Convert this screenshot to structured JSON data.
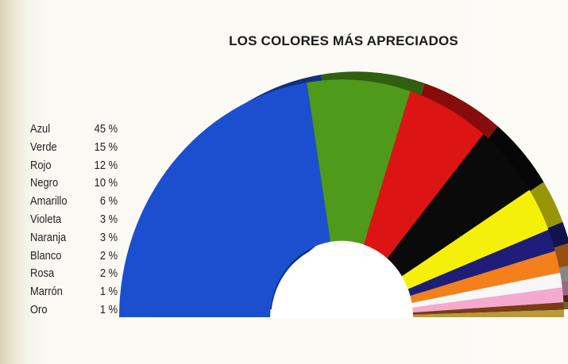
{
  "chart_data": {
    "type": "pie",
    "title": "LOS COLORES MÁS APRECIADOS",
    "categories": [
      "Azul",
      "Verde",
      "Rojo",
      "Negro",
      "Amarillo",
      "Violeta",
      "Naranja",
      "Blanco",
      "Rosa",
      "Marrón",
      "Oro"
    ],
    "values": [
      45,
      15,
      12,
      10,
      6,
      3,
      3,
      2,
      2,
      1,
      1
    ],
    "value_labels": [
      "45 %",
      "15 %",
      "12 %",
      "10 %",
      "6 %",
      "3 %",
      "3 %",
      "2 %",
      "2 %",
      "1 %",
      "1 %"
    ],
    "colors": [
      "#1c4fcf",
      "#4f9a1a",
      "#dc1414",
      "#0a0a0a",
      "#f5f00a",
      "#1e1e7a",
      "#f3801a",
      "#f7f7f7",
      "#f5a9d0",
      "#7a3d12",
      "#b79a3c"
    ],
    "legend_position": "left",
    "style": "3d-half-donut"
  }
}
